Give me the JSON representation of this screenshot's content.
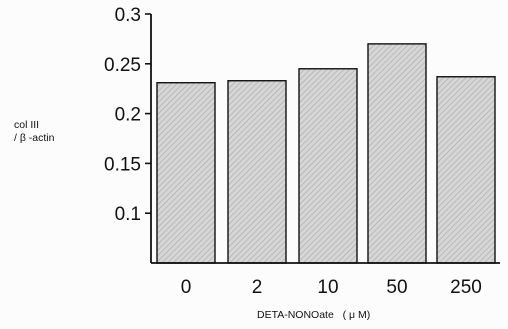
{
  "chart_data": {
    "type": "bar",
    "categories": [
      "0",
      "2",
      "10",
      "50",
      "250"
    ],
    "values": [
      0.231,
      0.233,
      0.245,
      0.27,
      0.237
    ],
    "xlabel": "DETA-NONOate   ( μ M)",
    "ylabel_line1": "col III",
    "ylabel_line2": "/ β -actin",
    "ylim": [
      0.05,
      0.3
    ],
    "yticks": [
      "0.1",
      "0.15",
      "0.2",
      "0.25",
      "0.3"
    ],
    "grid": false,
    "bar_color": "#d0d0d0",
    "axis_color": "#111111"
  }
}
